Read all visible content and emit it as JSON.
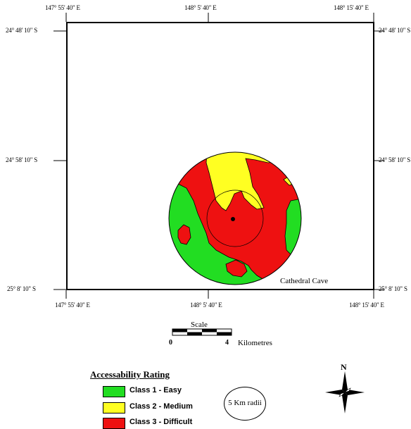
{
  "coords": {
    "top_left": "147° 55' 40\" E",
    "top_mid": "148° 5' 40\" E",
    "top_right": "148° 15' 40\" E",
    "bottom_left": "147° 55' 40\" E",
    "bottom_mid": "148° 5' 40\" E",
    "bottom_right": "148° 15' 40\" E",
    "left_top": "24° 48' 10\" S",
    "left_mid": "24° 58' 10\" S",
    "left_bottom": "25° 8' 10\" S",
    "right_top": "24° 48' 10\" S",
    "right_mid": "24° 58' 10\" S",
    "right_bottom": "25° 8' 10\" S"
  },
  "site_label": "Cathedral Cave",
  "scale": {
    "title": "Scale",
    "min": "0",
    "max": "4",
    "units": "Kilometres"
  },
  "legend": {
    "title": "Accessability Rating",
    "items": [
      {
        "label": "Class 1 - Easy",
        "color": "#22dd22"
      },
      {
        "label": "Class 2 - Medium",
        "color": "#ffff22"
      },
      {
        "label": "Class 3 - Difficult",
        "color": "#ee1111"
      }
    ]
  },
  "radius_label": "5 Km radii",
  "north_label": "N",
  "colors": {
    "easy": "#22dd22",
    "medium": "#ffff22",
    "difficult": "#ee1111"
  }
}
